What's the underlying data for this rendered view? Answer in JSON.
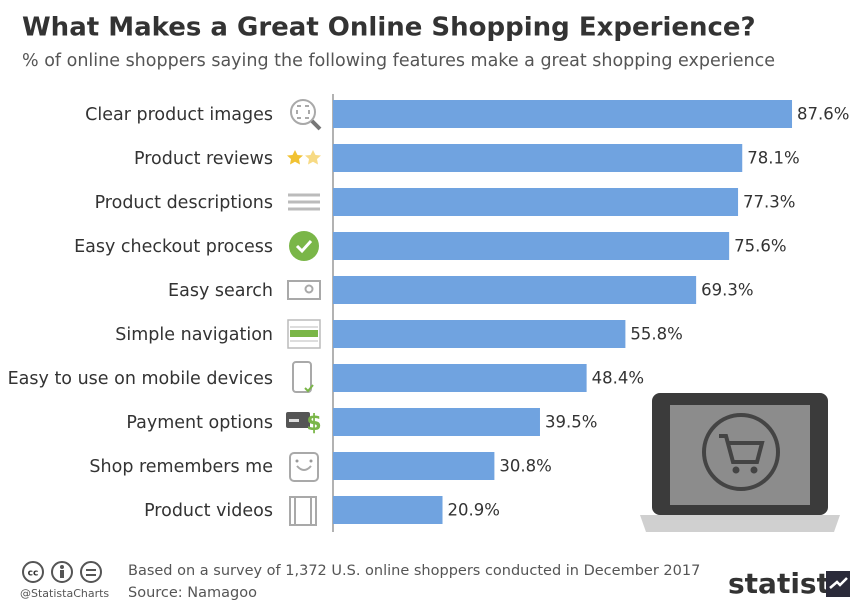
{
  "chart_data": {
    "type": "bar",
    "title": "What Makes a Great Online Shopping Experience?",
    "subtitle": "% of online shoppers saying the following features make a great shopping experience",
    "categories": [
      "Clear product images",
      "Product reviews",
      "Product descriptions",
      "Easy checkout process",
      "Easy search",
      "Simple navigation",
      "Easy to use on mobile devices",
      "Payment options",
      "Shop remembers me",
      "Product videos"
    ],
    "values": [
      87.6,
      78.1,
      77.3,
      75.6,
      69.3,
      55.8,
      48.4,
      39.5,
      30.8,
      20.9
    ],
    "value_labels": [
      "87.6%",
      "78.1%",
      "77.3%",
      "75.6%",
      "69.3%",
      "55.8%",
      "48.4%",
      "39.5%",
      "30.8%",
      "20.9%"
    ],
    "color": "#70a3e0",
    "note": "Based on a survey of 1,372 U.S. online shoppers conducted in December 2017",
    "source": "Source: Namagoo",
    "handle": "@StatistaCharts",
    "brand": "statista"
  }
}
